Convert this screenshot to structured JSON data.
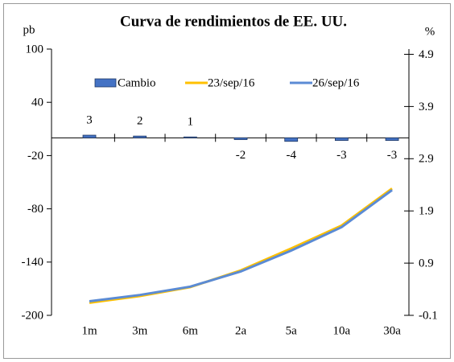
{
  "chart_data": {
    "type": "bar",
    "title": "Curva de rendimientos de EE. UU.",
    "y_label": "pb",
    "y2_label": "%",
    "categories": [
      "1m",
      "3m",
      "6m",
      "2a",
      "5a",
      "10a",
      "30a"
    ],
    "series": [
      {
        "name": "Cambio",
        "type": "bar",
        "color": "#4472c4",
        "axis": "y",
        "values": [
          3,
          2,
          1,
          -2,
          -4,
          -3,
          -3
        ]
      },
      {
        "name": "23/sep/16",
        "type": "line",
        "color": "#ffc000",
        "axis": "y2",
        "values": [
          0.14,
          0.27,
          0.44,
          0.76,
          1.18,
          1.62,
          2.33
        ]
      },
      {
        "name": "26/sep/16",
        "type": "line",
        "color": "#5b8bd4",
        "axis": "y2",
        "values": [
          0.17,
          0.29,
          0.45,
          0.74,
          1.14,
          1.59,
          2.3
        ]
      }
    ],
    "ylim": [
      -200,
      100
    ],
    "yticks": [
      -200,
      -140,
      -80,
      -20,
      40,
      100
    ],
    "y2lim": [
      -0.1,
      5.0
    ],
    "y2ticks": [
      -0.1,
      0.9,
      1.9,
      2.9,
      3.9,
      4.9
    ],
    "legend": "top",
    "data_labels": true
  }
}
